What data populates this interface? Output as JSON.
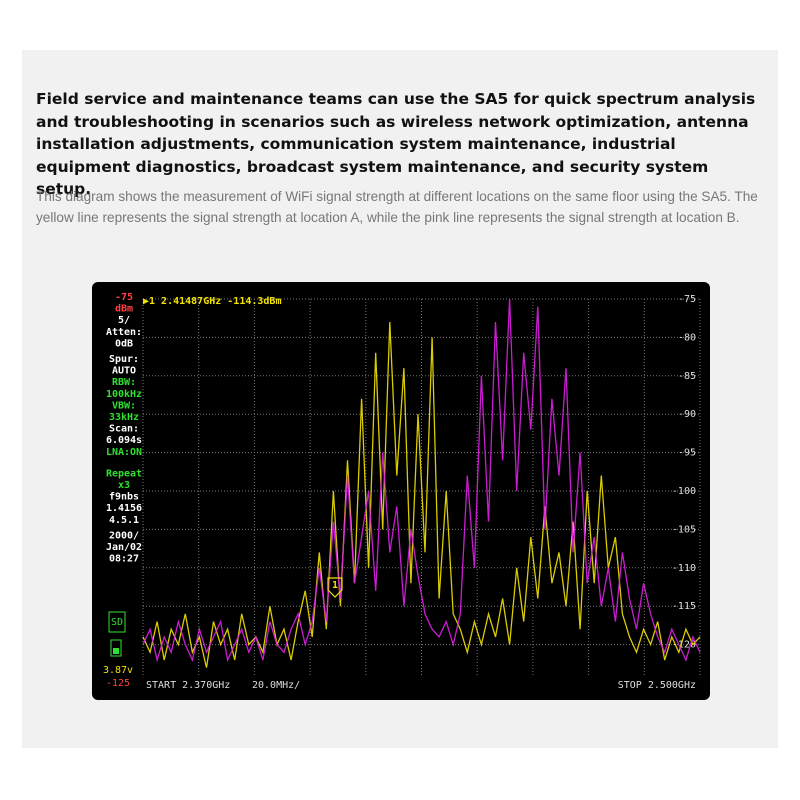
{
  "text": {
    "lead": "Field service and maintenance teams can use the SA5 for quick spectrum analysis and troubleshooting in scenarios such as wireless network optimization, antenna installation adjustments, communication system maintenance, industrial equipment diagnostics, broadcast system maintenance, and security system setup.",
    "body": "This diagram shows the measurement of WiFi signal strength at different locations on the same floor using the SA5. The yellow line represents the signal strength at location A, while the pink line represents the signal strength at location B."
  },
  "screen": {
    "marker": "▶1 2.41487GHz -114.3dBm",
    "marker_id": "1",
    "start": "START 2.370GHz",
    "span": "20.0MHz/",
    "stop": "STOP 2.500GHz",
    "side_labels": [
      {
        "text": "-75",
        "color": "#ff4040"
      },
      {
        "text": "dBm",
        "color": "#ff4040"
      },
      {
        "text": "5/",
        "color": "#ffffff"
      },
      {
        "text": "Atten:",
        "color": "#ffffff"
      },
      {
        "text": "0dB",
        "color": "#ffffff"
      },
      {
        "text": "Spur:",
        "color": "#ffffff"
      },
      {
        "text": "AUTO",
        "color": "#ffffff"
      },
      {
        "text": "RBW:",
        "color": "#30e030"
      },
      {
        "text": "100kHz",
        "color": "#30e030"
      },
      {
        "text": "VBW:",
        "color": "#30e030"
      },
      {
        "text": "33kHz",
        "color": "#30e030"
      },
      {
        "text": "Scan:",
        "color": "#ffffff"
      },
      {
        "text": "6.094s",
        "color": "#ffffff"
      },
      {
        "text": "LNA:ON",
        "color": "#30e030"
      },
      {
        "text": "Repeat",
        "color": "#30e030"
      },
      {
        "text": "x3",
        "color": "#30e030"
      },
      {
        "text": "f9nbs",
        "color": "#ffffff"
      },
      {
        "text": "1.4156",
        "color": "#ffffff"
      },
      {
        "text": "4.5.1",
        "color": "#ffffff"
      },
      {
        "text": "2000/",
        "color": "#ffffff"
      },
      {
        "text": "Jan/02",
        "color": "#ffffff"
      },
      {
        "text": "08:27",
        "color": "#ffffff"
      }
    ],
    "battery": "3.87v",
    "sd": "SD",
    "bottom_level": "-125",
    "ylim": [
      -125,
      -75
    ],
    "yticks": [
      -75,
      -80,
      -85,
      -90,
      -95,
      -100,
      -105,
      -110,
      -115,
      -120
    ],
    "traces": [
      {
        "color": "#f2e200",
        "values": [
          -119,
          -121,
          -117,
          -122,
          -118,
          -120,
          -116,
          -121,
          -119,
          -123,
          -117,
          -120,
          -118,
          -122,
          -116,
          -120,
          -119,
          -121,
          -115,
          -120,
          -118,
          -122,
          -117,
          -113,
          -119,
          -108,
          -118,
          -100,
          -115,
          -96,
          -112,
          -88,
          -110,
          -82,
          -105,
          -78,
          -98,
          -84,
          -112,
          -90,
          -108,
          -80,
          -114,
          -100,
          -116,
          -118,
          -121,
          -117,
          -120,
          -116,
          -119,
          -114,
          -120,
          -110,
          -117,
          -106,
          -114,
          -102,
          -112,
          -108,
          -115,
          -104,
          -118,
          -100,
          -112,
          -98,
          -110,
          -106,
          -116,
          -119,
          -121,
          -118,
          -120,
          -117,
          -122,
          -119,
          -121,
          -118,
          -120,
          -119
        ]
      },
      {
        "color": "#e020e8",
        "values": [
          -120,
          -118,
          -122,
          -119,
          -121,
          -117,
          -120,
          -122,
          -118,
          -121,
          -119,
          -117,
          -122,
          -120,
          -118,
          -121,
          -119,
          -122,
          -117,
          -120,
          -121,
          -118,
          -116,
          -120,
          -117,
          -110,
          -117,
          -104,
          -114,
          -98,
          -112,
          -106,
          -100,
          -113,
          -95,
          -108,
          -102,
          -115,
          -105,
          -111,
          -116,
          -118,
          -119,
          -117,
          -120,
          -116,
          -98,
          -110,
          -85,
          -104,
          -78,
          -96,
          -75,
          -100,
          -82,
          -92,
          -76,
          -105,
          -88,
          -98,
          -84,
          -108,
          -95,
          -112,
          -106,
          -115,
          -110,
          -117,
          -108,
          -114,
          -118,
          -112,
          -116,
          -119,
          -121,
          -118,
          -120,
          -122,
          -119,
          -121
        ]
      }
    ]
  }
}
